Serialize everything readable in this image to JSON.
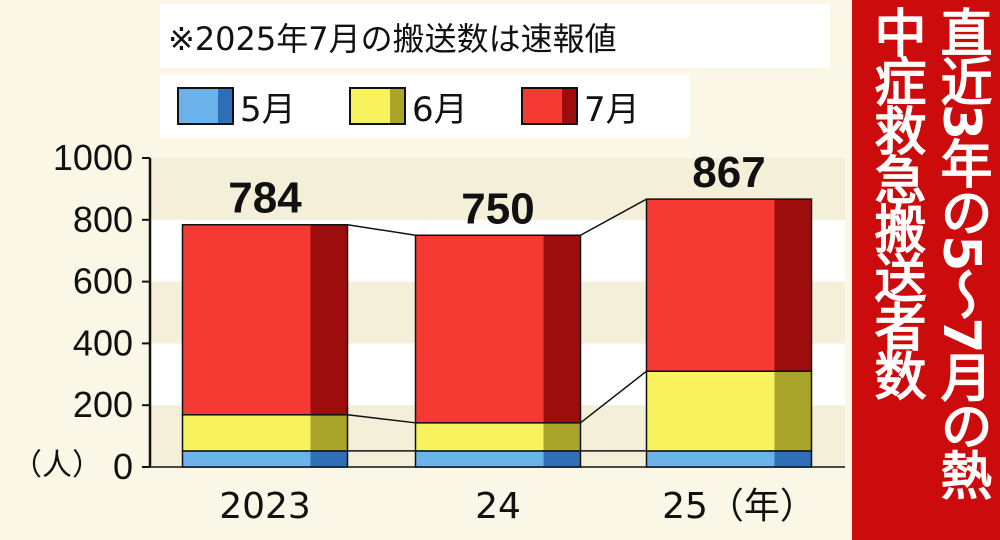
{
  "note": "※2025年7月の搬送数は速報値",
  "side_title": "直近3年の5～7月の熱中症救急搬送者数",
  "unit_label": "（人）",
  "legend": [
    {
      "label": "5月",
      "color": "#6cb3ec",
      "shade": "#2f6fb8"
    },
    {
      "label": "6月",
      "color": "#f7f25e",
      "shade": "#a9a52a"
    },
    {
      "label": "7月",
      "color": "#f43a32",
      "shade": "#9e0d0d"
    }
  ],
  "chart_data": {
    "type": "bar",
    "stacked": true,
    "categories": [
      "2023",
      "24",
      "25（年）"
    ],
    "series": [
      {
        "name": "5月",
        "values": [
          52,
          52,
          52
        ]
      },
      {
        "name": "6月",
        "values": [
          117,
          91,
          258
        ]
      },
      {
        "name": "7月",
        "values": [
          615,
          607,
          557
        ]
      }
    ],
    "totals": [
      "784",
      "750",
      "867"
    ],
    "yticks": [
      "0",
      "200",
      "400",
      "600",
      "800",
      "1000"
    ],
    "ylim": [
      0,
      1000
    ],
    "grid": "alternating bands",
    "title": "",
    "xlabel": "",
    "ylabel": "（人）"
  }
}
